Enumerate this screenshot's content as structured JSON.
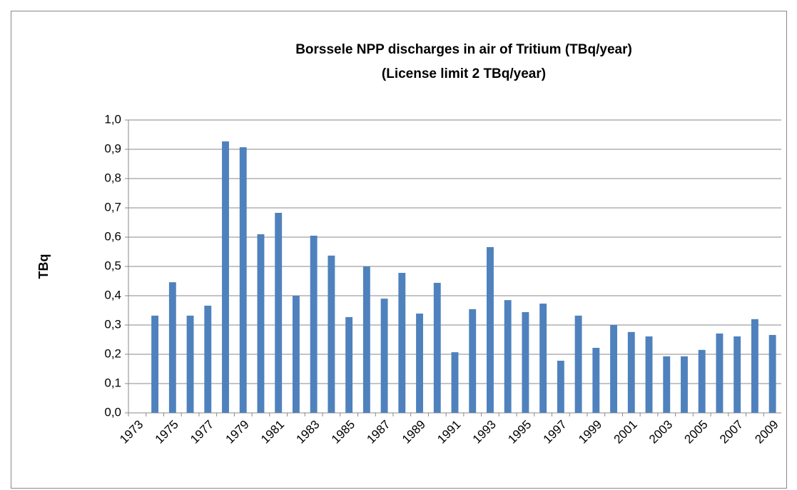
{
  "chart_data": {
    "type": "bar",
    "title": "Borssele NPP discharges in air of Tritium (TBq/year)",
    "subtitle": "(License limit 2 TBq/year)",
    "y_label": "TBq",
    "color": "#4f81bd",
    "grid": true,
    "categories": [
      "1973",
      null,
      "1975",
      null,
      "1977",
      null,
      "1979",
      null,
      "1981",
      null,
      "1983",
      null,
      "1985",
      null,
      "1987",
      null,
      "1989",
      null,
      "1991",
      null,
      "1993",
      null,
      "1995",
      null,
      "1997",
      null,
      "1999",
      null,
      "2001",
      null,
      "2003",
      null,
      "2005",
      null,
      "2007",
      null,
      "2009"
    ],
    "values": [
      null,
      0.332,
      0.446,
      0.332,
      0.366,
      0.927,
      0.907,
      0.61,
      0.683,
      0.4,
      0.605,
      0.537,
      0.327,
      0.5,
      0.39,
      0.478,
      0.339,
      0.444,
      0.207,
      0.354,
      0.566,
      0.385,
      0.344,
      0.373,
      0.178,
      0.332,
      0.222,
      0.3,
      0.276,
      0.261,
      0.193,
      0.193,
      0.215,
      0.271,
      0.261,
      0.32,
      0.266
    ],
    "ylim": [
      0,
      1
    ],
    "yticks": [
      {
        "value": 0,
        "label": "0,0"
      },
      {
        "value": 0.1,
        "label": "0,1"
      },
      {
        "value": 0.2,
        "label": "0,2"
      },
      {
        "value": 0.3,
        "label": "0,3"
      },
      {
        "value": 0.4,
        "label": "0,4"
      },
      {
        "value": 0.5,
        "label": "0,5"
      },
      {
        "value": 0.6,
        "label": "0,6"
      },
      {
        "value": 0.7,
        "label": "0,7"
      },
      {
        "value": 0.8,
        "label": "0,8"
      },
      {
        "value": 0.9,
        "label": "0,9"
      },
      {
        "value": 1,
        "label": "1,0"
      }
    ]
  }
}
